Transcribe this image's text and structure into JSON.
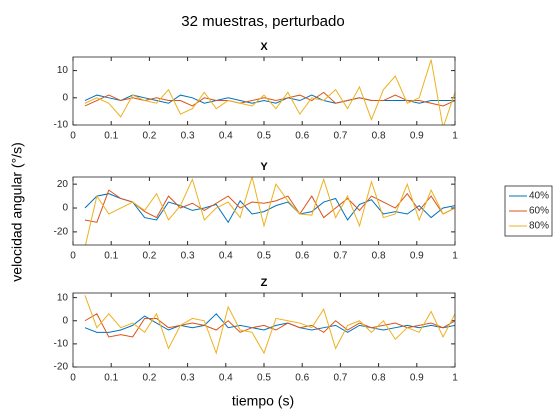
{
  "title": "32 muestras, perturbado",
  "xlabel": "tiempo (s)",
  "ylabel": "velocidad angular (°/s)",
  "chart_data": [
    {
      "type": "line",
      "title": "X",
      "x": [
        0.03125,
        0.0625,
        0.09375,
        0.125,
        0.15625,
        0.1875,
        0.21875,
        0.25,
        0.28125,
        0.3125,
        0.34375,
        0.375,
        0.40625,
        0.4375,
        0.46875,
        0.5,
        0.53125,
        0.5625,
        0.59375,
        0.625,
        0.65625,
        0.6875,
        0.71875,
        0.75,
        0.78125,
        0.8125,
        0.84375,
        0.875,
        0.90625,
        0.9375,
        0.96875,
        1
      ],
      "xlim": [
        0,
        1
      ],
      "xticks": [
        0,
        0.1,
        0.2,
        0.3,
        0.4,
        0.5,
        0.6,
        0.7,
        0.8,
        0.9,
        1
      ],
      "ylim": [
        -10,
        15
      ],
      "yticks": [
        -10,
        0,
        10
      ],
      "series": [
        {
          "name": "40%",
          "color": "#0072BD",
          "values": [
            -1,
            1,
            0,
            -1,
            1,
            0,
            -1,
            -2,
            1,
            0,
            -2,
            -1,
            0,
            -1,
            -2,
            -1,
            -2,
            0,
            -1,
            1,
            -1,
            -2,
            -1,
            0,
            -1,
            -1,
            -1,
            -1,
            -2,
            -1,
            -1,
            -1
          ]
        },
        {
          "name": "60%",
          "color": "#D95319",
          "values": [
            -3,
            -1,
            1,
            -1,
            0,
            -1,
            0,
            -1,
            -1,
            -3,
            0,
            -1,
            -1,
            -2,
            -1,
            0,
            -1,
            0,
            1,
            -1,
            2,
            -2,
            -1,
            0,
            -1,
            -1,
            1,
            -1,
            -1,
            -2,
            -3,
            -1
          ]
        },
        {
          "name": "80%",
          "color": "#EDB120",
          "values": [
            -2,
            0,
            -2,
            -7,
            1,
            -1,
            -2,
            3,
            -6,
            -4,
            2,
            -4,
            -1,
            -2,
            -3,
            1,
            -4,
            2,
            -6,
            0,
            -1,
            3,
            -4,
            4,
            -8,
            3,
            8,
            -2,
            0,
            14,
            -11,
            2
          ]
        }
      ]
    },
    {
      "type": "line",
      "title": "Y",
      "x": [
        0.03125,
        0.0625,
        0.09375,
        0.125,
        0.15625,
        0.1875,
        0.21875,
        0.25,
        0.28125,
        0.3125,
        0.34375,
        0.375,
        0.40625,
        0.4375,
        0.46875,
        0.5,
        0.53125,
        0.5625,
        0.59375,
        0.625,
        0.65625,
        0.6875,
        0.71875,
        0.75,
        0.78125,
        0.8125,
        0.84375,
        0.875,
        0.90625,
        0.9375,
        0.96875,
        1
      ],
      "xlim": [
        0,
        1
      ],
      "xticks": [
        0,
        0.1,
        0.2,
        0.3,
        0.4,
        0.5,
        0.6,
        0.7,
        0.8,
        0.9,
        1
      ],
      "ylim": [
        -31,
        26
      ],
      "yticks": [
        -20,
        0,
        20
      ],
      "series": [
        {
          "name": "40%",
          "color": "#0072BD",
          "values": [
            0,
            10,
            12,
            8,
            5,
            -8,
            -10,
            5,
            2,
            -2,
            0,
            3,
            -12,
            6,
            -5,
            -3,
            2,
            5,
            -5,
            -3,
            5,
            8,
            -10,
            3,
            7,
            -5,
            -3,
            -5,
            2,
            -8,
            0,
            2
          ]
        },
        {
          "name": "60%",
          "color": "#D95319",
          "values": [
            -10,
            -12,
            15,
            8,
            5,
            -3,
            -8,
            10,
            0,
            4,
            -2,
            4,
            10,
            0,
            5,
            4,
            6,
            10,
            -5,
            10,
            -8,
            0,
            8,
            -2,
            10,
            5,
            0,
            12,
            -2,
            10,
            -5,
            0
          ]
        },
        {
          "name": "80%",
          "color": "#EDB120",
          "values": [
            -33,
            10,
            -5,
            0,
            5,
            -2,
            12,
            -10,
            2,
            24,
            -10,
            0,
            5,
            -8,
            26,
            -15,
            20,
            6,
            -5,
            -6,
            24,
            -8,
            10,
            -15,
            22,
            -8,
            -5,
            20,
            -10,
            15,
            -5,
            0
          ]
        }
      ]
    },
    {
      "type": "line",
      "title": "Z",
      "x": [
        0.03125,
        0.0625,
        0.09375,
        0.125,
        0.15625,
        0.1875,
        0.21875,
        0.25,
        0.28125,
        0.3125,
        0.34375,
        0.375,
        0.40625,
        0.4375,
        0.46875,
        0.5,
        0.53125,
        0.5625,
        0.59375,
        0.625,
        0.65625,
        0.6875,
        0.71875,
        0.75,
        0.78125,
        0.8125,
        0.84375,
        0.875,
        0.90625,
        0.9375,
        0.96875,
        1
      ],
      "xlim": [
        0,
        1
      ],
      "xticks": [
        0,
        0.1,
        0.2,
        0.3,
        0.4,
        0.5,
        0.6,
        0.7,
        0.8,
        0.9,
        1
      ],
      "ylim": [
        -20,
        12
      ],
      "yticks": [
        -20,
        -10,
        0,
        10
      ],
      "series": [
        {
          "name": "40%",
          "color": "#0072BD",
          "values": [
            -3,
            -5,
            -5,
            -4,
            -2,
            2,
            -1,
            -4,
            -2,
            -3,
            -2,
            3,
            -3,
            -2,
            -3,
            -4,
            -2,
            -1,
            -3,
            -4,
            -3,
            -2,
            -5,
            -2,
            -3,
            -4,
            -3,
            -2,
            -3,
            -2,
            -3,
            -2
          ]
        },
        {
          "name": "60%",
          "color": "#D95319",
          "values": [
            0,
            3,
            -7,
            -6,
            -7,
            1,
            1,
            -3,
            -2,
            -1,
            -2,
            -4,
            0,
            -5,
            -3,
            -2,
            -4,
            -1,
            -3,
            -2,
            -5,
            0,
            -4,
            -1,
            -3,
            -2,
            -1,
            -3,
            -2,
            -1,
            -3,
            0
          ]
        },
        {
          "name": "80%",
          "color": "#EDB120",
          "values": [
            11,
            -3,
            3,
            -3,
            -1,
            -5,
            3,
            -12,
            -2,
            1,
            0,
            -14,
            6,
            -4,
            -5,
            -14,
            1,
            0,
            -1,
            -3,
            5,
            -12,
            -2,
            0,
            -5,
            0,
            -8,
            -3,
            -5,
            4,
            -7,
            3
          ]
        }
      ]
    }
  ]
}
